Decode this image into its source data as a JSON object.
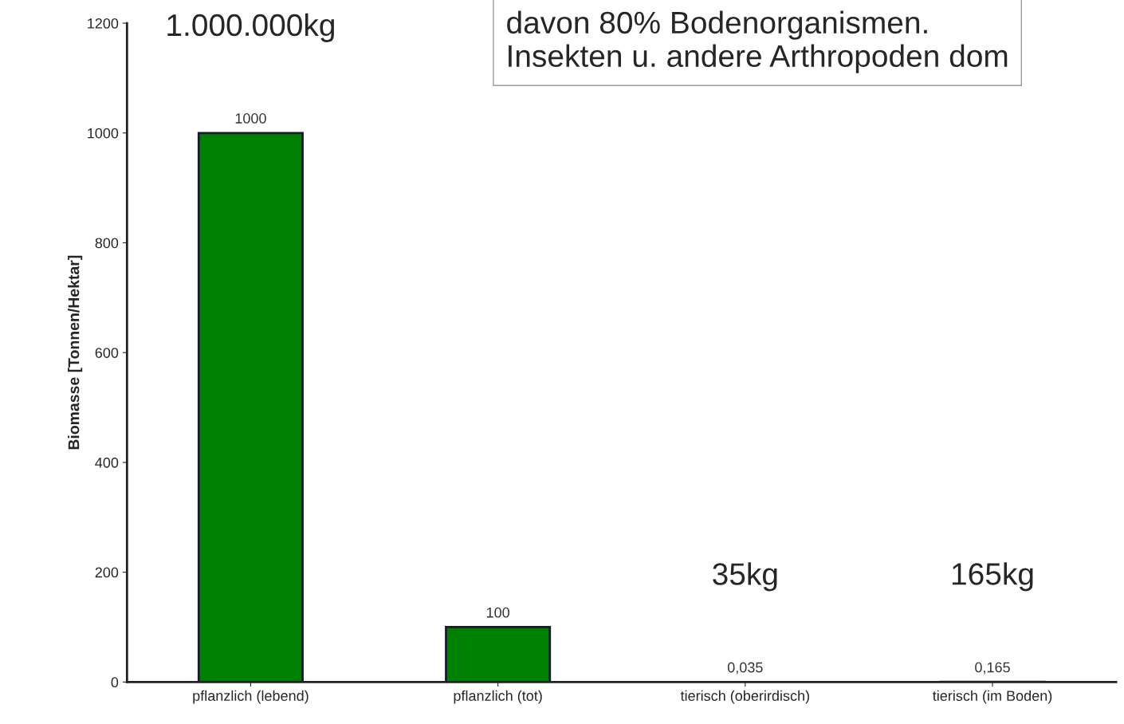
{
  "chart_data": {
    "type": "bar",
    "categories": [
      "pflanzlich (lebend)",
      "pflanzlich (tot)",
      "tierisch (oberirdisch)",
      "tierisch (im Boden)"
    ],
    "values": [
      1000,
      100,
      0.035,
      0.165
    ],
    "value_labels": [
      "1000",
      "100",
      "0,035",
      "0,165"
    ],
    "color": "#008000",
    "ylabel": "Biomasse [Tonnen/Hektar]",
    "ylim": [
      0,
      1200
    ],
    "yticks": [
      0,
      200,
      400,
      600,
      800,
      1000,
      1200
    ],
    "grid": false,
    "annotations": [
      {
        "text": "1.000.000kg",
        "x": "pflanzlich (lebend)",
        "y": 1000
      },
      {
        "text": "35kg",
        "x": "tierisch (oberirdisch)",
        "y": 0.035
      },
      {
        "text": "165kg",
        "x": "tierisch (im Boden)",
        "y": 0.165
      },
      "davon 80% Bodenorganismen.\nInsekten u. andere Arthropoden dom"
    ]
  }
}
